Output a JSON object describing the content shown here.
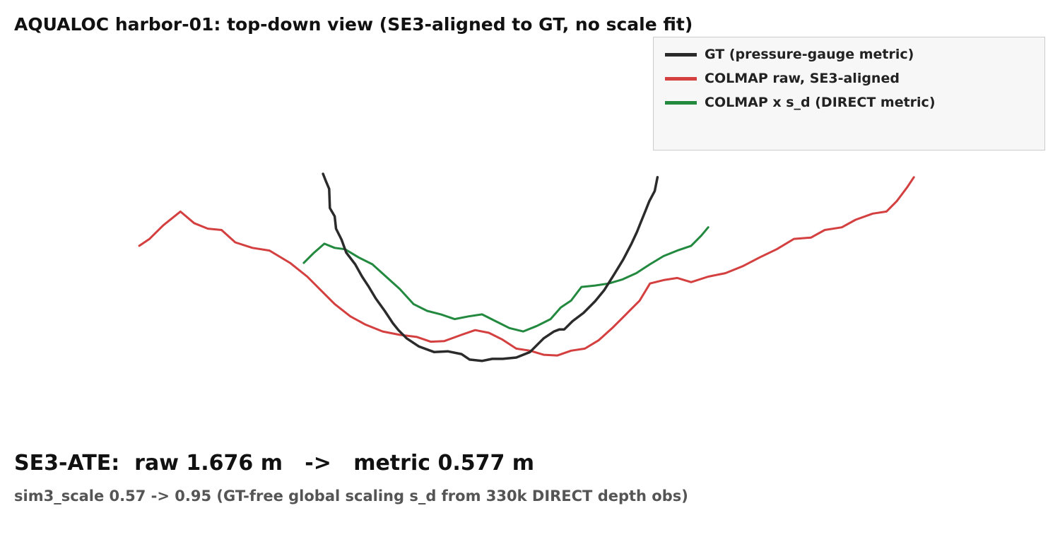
{
  "chart_data": {
    "type": "line",
    "title": "AQUALOC harbor-01: top-down view (SE3-aligned to GT, no scale fit)",
    "xlabel": "",
    "ylabel": "",
    "grid": false,
    "axes_visible": false,
    "legend_position": "top-right",
    "series": [
      {
        "name": "GT (pressure-gauge metric)",
        "color": "#2b2b2b",
        "x": [
          -3.02,
          -2.98,
          -2.93,
          -2.92,
          -2.85,
          -2.83,
          -2.75,
          -2.68,
          -2.55,
          -2.45,
          -2.35,
          -2.25,
          -2.12,
          -2.0,
          -1.92,
          -1.8,
          -1.62,
          -1.4,
          -1.2,
          -1.0,
          -0.88,
          -0.7,
          -0.55,
          -0.4,
          -0.2,
          0.0,
          0.2,
          0.35,
          0.43,
          0.5,
          0.62,
          0.78,
          0.95,
          1.08,
          1.22,
          1.36,
          1.48,
          1.56,
          1.62,
          1.68,
          1.74,
          1.82,
          1.86
        ],
        "y": [
          2.0,
          1.9,
          1.78,
          1.5,
          1.38,
          1.2,
          1.04,
          0.85,
          0.68,
          0.5,
          0.35,
          0.18,
          0.0,
          -0.18,
          -0.28,
          -0.4,
          -0.52,
          -0.6,
          -0.59,
          -0.63,
          -0.71,
          -0.73,
          -0.7,
          -0.7,
          -0.68,
          -0.6,
          -0.4,
          -0.3,
          -0.27,
          -0.27,
          -0.15,
          -0.03,
          0.14,
          0.3,
          0.52,
          0.75,
          0.98,
          1.15,
          1.3,
          1.45,
          1.6,
          1.75,
          1.95
        ]
      },
      {
        "name": "COLMAP raw, SE3-aligned",
        "color": "#d43f3f",
        "x": [
          -5.7,
          -5.55,
          -5.35,
          -5.1,
          -4.9,
          -4.7,
          -4.5,
          -4.3,
          -4.05,
          -3.8,
          -3.5,
          -3.25,
          -3.05,
          -2.85,
          -2.62,
          -2.4,
          -2.15,
          -1.9,
          -1.65,
          -1.45,
          -1.25,
          -1.0,
          -0.8,
          -0.6,
          -0.4,
          -0.2,
          0.0,
          0.2,
          0.4,
          0.6,
          0.8,
          1.0,
          1.2,
          1.4,
          1.6,
          1.75,
          1.95,
          2.15,
          2.35,
          2.6,
          2.85,
          3.1,
          3.35,
          3.6,
          3.85,
          4.1,
          4.3,
          4.55,
          4.75,
          5.0,
          5.2,
          5.35,
          5.5,
          5.6
        ],
        "y": [
          0.95,
          1.05,
          1.25,
          1.45,
          1.28,
          1.2,
          1.18,
          1.0,
          0.92,
          0.88,
          0.7,
          0.5,
          0.3,
          0.1,
          -0.08,
          -0.2,
          -0.3,
          -0.35,
          -0.38,
          -0.45,
          -0.44,
          -0.35,
          -0.28,
          -0.32,
          -0.42,
          -0.55,
          -0.58,
          -0.64,
          -0.65,
          -0.58,
          -0.55,
          -0.43,
          -0.25,
          -0.05,
          0.15,
          0.4,
          0.45,
          0.48,
          0.42,
          0.5,
          0.55,
          0.65,
          0.78,
          0.9,
          1.05,
          1.07,
          1.18,
          1.22,
          1.33,
          1.42,
          1.45,
          1.6,
          1.8,
          1.95
        ]
      },
      {
        "name": "COLMAP x s_d (DIRECT metric)",
        "color": "#22893f",
        "x": [
          -3.3,
          -3.15,
          -3.0,
          -2.85,
          -2.7,
          -2.5,
          -2.3,
          -2.1,
          -1.9,
          -1.7,
          -1.5,
          -1.3,
          -1.1,
          -0.9,
          -0.7,
          -0.5,
          -0.3,
          -0.1,
          0.1,
          0.3,
          0.45,
          0.6,
          0.75,
          0.95,
          1.15,
          1.35,
          1.55,
          1.75,
          1.95,
          2.15,
          2.35,
          2.5,
          2.6
        ],
        "y": [
          0.7,
          0.85,
          0.98,
          0.92,
          0.9,
          0.78,
          0.68,
          0.5,
          0.32,
          0.1,
          0.0,
          -0.05,
          -0.12,
          -0.08,
          -0.05,
          -0.15,
          -0.25,
          -0.3,
          -0.22,
          -0.12,
          0.05,
          0.15,
          0.35,
          0.37,
          0.4,
          0.46,
          0.55,
          0.68,
          0.8,
          0.88,
          0.95,
          1.1,
          1.22
        ]
      }
    ]
  },
  "summary": {
    "metric_text": "SE3-ATE:  raw 1.676 m   ->   metric 0.577 m",
    "subtitle_text": "sim3_scale 0.57 -> 0.95 (GT-free global scaling s_d from 330k DIRECT depth obs)"
  }
}
